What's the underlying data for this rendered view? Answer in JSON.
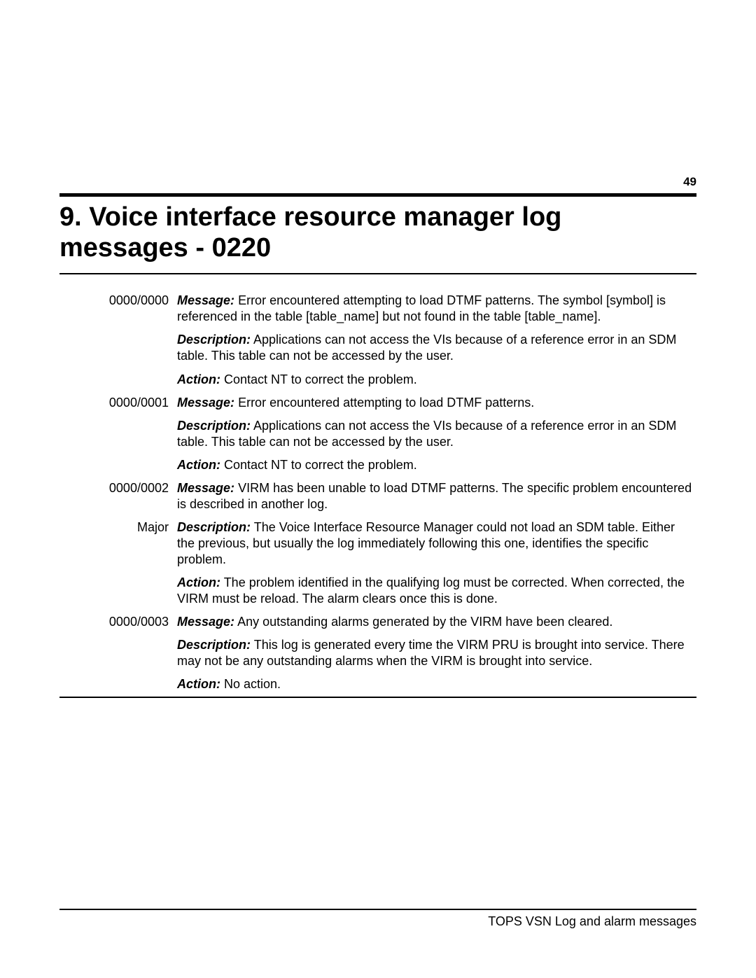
{
  "page_number": "49",
  "title": "9. Voice interface resource manager log messages - 0220",
  "labels": {
    "message": "Message:",
    "description": "Description:",
    "action": "Action:"
  },
  "entries": [
    {
      "code": "0000/0000",
      "severity": "",
      "message": "Error encountered attempting to load DTMF patterns.  The symbol [symbol] is referenced in the table [table_name] but not found in the table [table_name].",
      "description": " Applications can not access the VIs because of a reference error in an SDM table.  This table can not be accessed by the user.",
      "action": "  Contact NT to correct the problem."
    },
    {
      "code": "0000/0001",
      "severity": "",
      "message": "Error encountered attempting to load DTMF patterns.",
      "description": " Applications can not access the VIs because of a reference error in an SDM table.  This table can not be accessed by the user.",
      "action": "  Contact NT to correct the problem."
    },
    {
      "code": "0000/0002",
      "severity": "Major",
      "message": "VIRM has been unable to load DTMF patterns.   The specific problem encountered is described in another log.",
      "description": " The Voice Interface Resource Manager could not load an SDM table.  Either the previous, but usually the log immediately following this one, identifies the specific problem.",
      "action": "  The problem identified in the qualifying log must be corrected.  When corrected, the VIRM must be reload.  The alarm clears once this is done."
    },
    {
      "code": "0000/0003",
      "severity": "",
      "message": "Any outstanding alarms generated by the VIRM have been cleared.",
      "description": " This log is generated every time the VIRM PRU is brought into service.  There may not be any outstanding alarms when the VIRM is brought into service.",
      "action": "  No action."
    }
  ],
  "footer": "TOPS VSN Log and alarm messages"
}
